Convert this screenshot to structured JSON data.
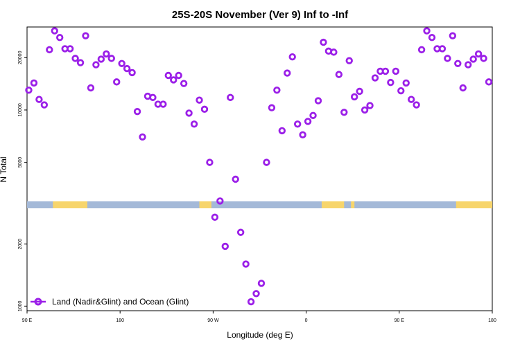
{
  "chart_data": {
    "type": "scatter",
    "title": "25S-20S November (Ver 9)   Inf to -Inf",
    "xlabel": "Longitude (deg E)",
    "ylabel": "N Total",
    "xlim": [
      -90,
      180
    ],
    "x_ticks": [
      {
        "value": -90,
        "label": "90 E"
      },
      {
        "value": -36,
        "label": "180"
      },
      {
        "value": 18,
        "label": "90 W"
      },
      {
        "value": 72,
        "label": "0"
      },
      {
        "value": 126,
        "label": "90 E"
      },
      {
        "value": 180,
        "label": "180"
      }
    ],
    "upper_panel": {
      "ylim": [
        2850,
        30000
      ],
      "y_ticks": [
        5000,
        10000,
        20000
      ],
      "scale": "log"
    },
    "lower_panel": {
      "ylim": [
        950,
        3100
      ],
      "y_ticks": [
        1000,
        2000
      ],
      "scale": "log"
    },
    "grid": false,
    "legend_position": "bottom-left",
    "series": [
      {
        "name": "Land (Nadir&Glint) and Ocean (Glint)",
        "color": "#9b1fe8",
        "marker": "open-circle",
        "x": [
          -89,
          -86,
          -83,
          -80,
          -77,
          -74,
          -71,
          -68,
          -65,
          -62,
          -59,
          -56,
          -53,
          -50,
          -47,
          -44,
          -41,
          -38,
          -35,
          -32,
          -29,
          -26,
          -23,
          -20,
          -17,
          -14,
          -11,
          -8,
          -5,
          -2,
          1,
          4,
          7,
          10,
          13,
          16,
          19,
          22,
          25,
          28,
          31,
          34,
          37,
          40,
          43,
          46,
          49,
          52,
          55,
          58,
          61,
          64,
          67,
          70,
          73,
          76,
          79,
          82,
          85,
          88,
          91,
          94,
          97,
          100,
          103,
          106,
          109,
          112,
          115,
          118,
          121,
          124,
          127,
          130,
          133,
          136,
          139,
          142,
          145,
          148,
          151,
          154,
          157,
          160,
          163,
          166,
          169,
          172,
          175,
          178
        ],
        "y": [
          13000,
          14300,
          11500,
          10700,
          22200,
          28500,
          26100,
          22500,
          22500,
          19800,
          18700,
          26700,
          13400,
          18200,
          19600,
          21000,
          19800,
          14500,
          18500,
          17300,
          16400,
          9800,
          7000,
          12000,
          11800,
          10800,
          10800,
          15800,
          14900,
          15800,
          14200,
          9600,
          8300,
          11400,
          10100,
          5000,
          2700,
          3000,
          1950,
          11800,
          4000,
          2280,
          1600,
          1050,
          1150,
          1290,
          5000,
          10300,
          13000,
          7600,
          16300,
          20200,
          8300,
          7200,
          8600,
          9300,
          11300,
          24500,
          21800,
          21500,
          16000,
          9700,
          19200,
          11900,
          12800,
          10000,
          10600,
          15300,
          16700,
          16700,
          14400,
          16700,
          12900,
          14300,
          11500,
          10700,
          22200,
          28500,
          26100,
          22500,
          22500,
          19800,
          26700,
          18500,
          13400,
          18200,
          19600,
          21000,
          19800,
          14500
        ]
      }
    ],
    "land_mask_strip": {
      "land_color": "#f7d56c",
      "ocean_color": "#a4b9d8",
      "land_lon_ranges": [
        [
          -75,
          -55
        ],
        [
          10,
          17
        ],
        [
          81,
          94
        ],
        [
          98,
          100
        ],
        [
          159,
          180
        ]
      ]
    }
  }
}
